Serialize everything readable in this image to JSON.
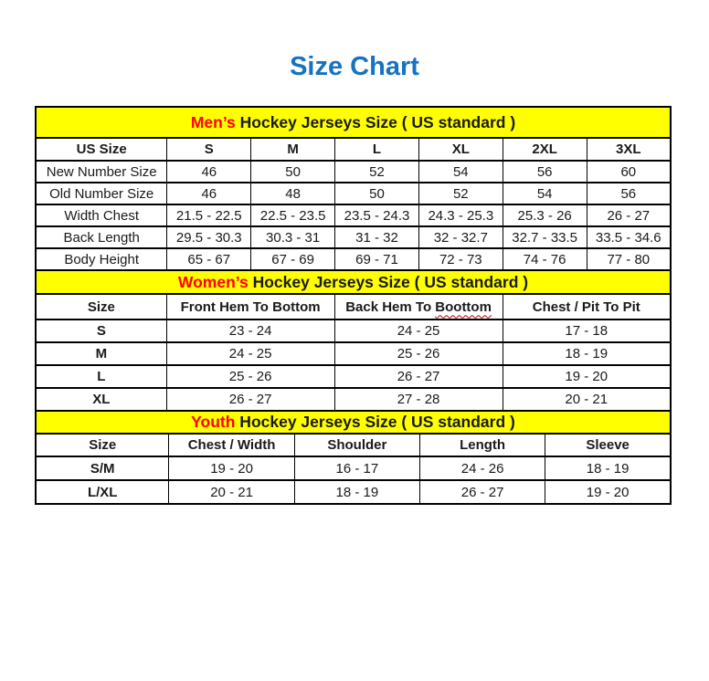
{
  "page": {
    "title": "Size Chart"
  },
  "colors": {
    "title_blue": "#1673C1",
    "band_yellow": "#FFFF00",
    "highlight_red": "#FF0000",
    "border_black": "#000000",
    "squiggle_red": "#C00000"
  },
  "tables": [
    {
      "id": "mens",
      "title_highlight": "Men’s",
      "title_rest": " Hockey Jerseys Size ( US standard )",
      "first_col_width": "20.7%",
      "columns": [
        "US Size",
        "S",
        "M",
        "L",
        "XL",
        "2XL",
        "3XL"
      ],
      "rows": [
        [
          "New Number Size",
          "46",
          "50",
          "52",
          "54",
          "56",
          "60"
        ],
        [
          "Old Number Size",
          "46",
          "48",
          "50",
          "52",
          "54",
          "56"
        ],
        [
          "Width Chest",
          "21.5 - 22.5",
          "22.5 - 23.5",
          "23.5 - 24.3",
          "24.3 - 25.3",
          "25.3 - 26",
          "26 - 27"
        ],
        [
          "Back Length",
          "29.5 - 30.3",
          "30.3 - 31",
          "31 - 32",
          "32 - 32.7",
          "32.7 - 33.5",
          "33.5 - 34.6"
        ],
        [
          "Body Height",
          "65 - 67",
          "67 - 69",
          "69 - 71",
          "72 - 73",
          "74 - 76",
          "77 - 80"
        ]
      ]
    },
    {
      "id": "womens",
      "title_highlight": "Women’s",
      "title_rest": " Hockey Jerseys Size ( US standard )",
      "first_col_width": "20.6%",
      "columns": [
        "Size",
        "Front Hem To Bottom",
        "Back Hem To Boottom",
        "Chest / Pit To Pit"
      ],
      "squiggle": {
        "column_index": 2,
        "prefix": "Back Hem To ",
        "word": "Boottom"
      },
      "rows": [
        [
          "S",
          "23 - 24",
          "24 - 25",
          "17 - 18"
        ],
        [
          "M",
          "24 - 25",
          "25 - 26",
          "18 - 19"
        ],
        [
          "L",
          "25 - 26",
          "26 - 27",
          "19 - 20"
        ],
        [
          "XL",
          "26 - 27",
          "27 - 28",
          "20 - 21"
        ]
      ]
    },
    {
      "id": "youth",
      "title_highlight": "Youth",
      "title_rest": " Hockey Jerseys Size ( US standard )",
      "first_col_width": "21.0%",
      "columns": [
        "Size",
        "Chest / Width",
        "Shoulder",
        "Length",
        "Sleeve"
      ],
      "rows": [
        [
          "S/M",
          "19 - 20",
          "16 - 17",
          "24 - 26",
          "18 - 19"
        ],
        [
          "L/XL",
          "20 - 21",
          "18 - 19",
          "26 - 27",
          "19 - 20"
        ]
      ]
    }
  ]
}
